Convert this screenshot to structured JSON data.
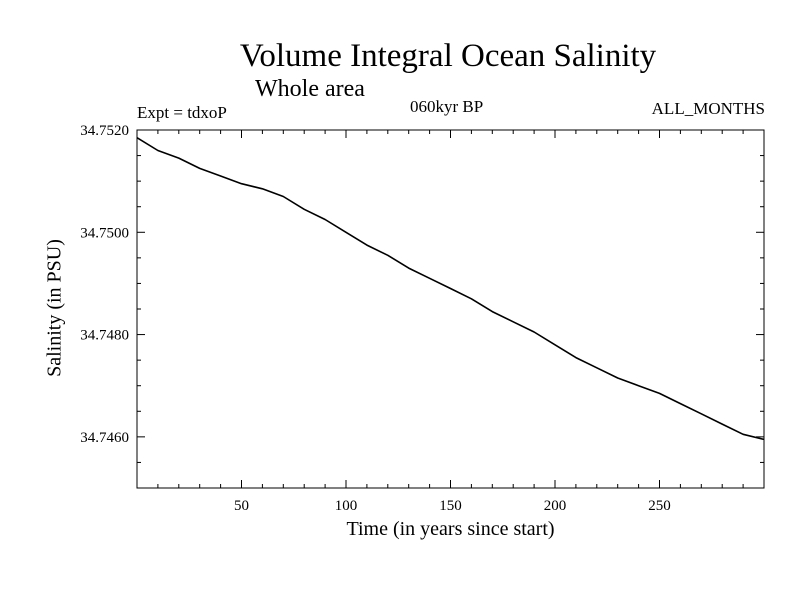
{
  "chart_data": {
    "type": "line",
    "title": "Volume Integral Ocean Salinity",
    "subtitle": "Whole area",
    "left_note": "Expt = tdxoP",
    "center_note": "060kyr BP",
    "right_note": "ALL_MONTHS",
    "xlabel": "Time (in years since start)",
    "ylabel": "Salinity (in PSU)",
    "xlim": [
      0,
      300
    ],
    "ylim": [
      34.745,
      34.752
    ],
    "x_ticks": [
      50,
      100,
      150,
      200,
      250
    ],
    "y_ticks": [
      34.752,
      34.75,
      34.748,
      34.746
    ],
    "y_tick_labels": [
      "34.7520",
      "34.7500",
      "34.7480",
      "34.7460"
    ],
    "x_minor_step": 10,
    "y_minor_step": 0.0005,
    "grid": false,
    "series": [
      {
        "color": "#000000",
        "x": [
          0,
          10,
          20,
          30,
          40,
          50,
          60,
          70,
          80,
          90,
          100,
          110,
          120,
          130,
          140,
          150,
          160,
          170,
          180,
          190,
          200,
          210,
          220,
          230,
          240,
          250,
          260,
          270,
          280,
          290,
          300
        ],
        "y": [
          34.75185,
          34.7516,
          34.75145,
          34.75125,
          34.7511,
          34.75095,
          34.75085,
          34.7507,
          34.75045,
          34.75025,
          34.75,
          34.74975,
          34.74955,
          34.7493,
          34.7491,
          34.7489,
          34.7487,
          34.74845,
          34.74825,
          34.74805,
          34.7478,
          34.74755,
          34.74735,
          34.74715,
          34.747,
          34.74685,
          34.74665,
          34.74645,
          34.74625,
          34.74605,
          34.74595
        ]
      }
    ]
  }
}
